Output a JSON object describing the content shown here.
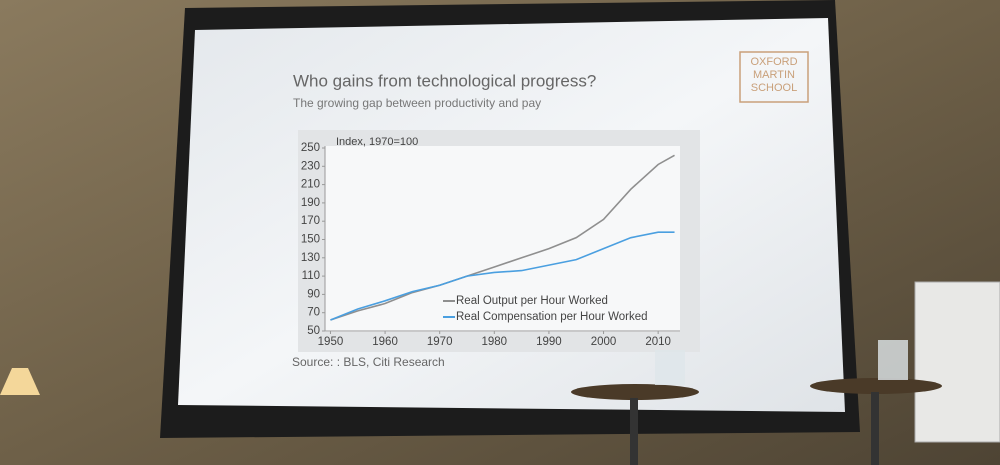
{
  "chart_data": {
    "type": "line",
    "title": "Who gains from technological progress?",
    "subtitle": "The growing gap between productivity and pay",
    "y_label": "Index, 1970=100",
    "source": "Source: : BLS, Citi Research",
    "logo": [
      "OXFORD",
      "MARTIN",
      "SCHOOL"
    ],
    "x": [
      1950,
      1955,
      1960,
      1965,
      1970,
      1975,
      1980,
      1985,
      1990,
      1995,
      2000,
      2005,
      2010,
      2013
    ],
    "series": [
      {
        "name": "Real Output per Hour Worked",
        "color": "#8f8f8f",
        "values": [
          62,
          72,
          80,
          92,
          100,
          110,
          120,
          130,
          140,
          152,
          172,
          205,
          232,
          242
        ]
      },
      {
        "name": "Real Compensation per Hour Worked",
        "color": "#4a9fe0",
        "values": [
          62,
          74,
          83,
          93,
          100,
          110,
          114,
          116,
          122,
          128,
          140,
          152,
          158,
          158
        ]
      }
    ],
    "xlim": [
      1949,
      2014
    ],
    "xticks": [
      1950,
      1960,
      1970,
      1980,
      1990,
      2000,
      2010
    ],
    "ylim": [
      50,
      250
    ],
    "yticks": [
      50,
      70,
      90,
      110,
      130,
      150,
      170,
      190,
      210,
      230,
      250
    ],
    "legend": "lower right"
  }
}
